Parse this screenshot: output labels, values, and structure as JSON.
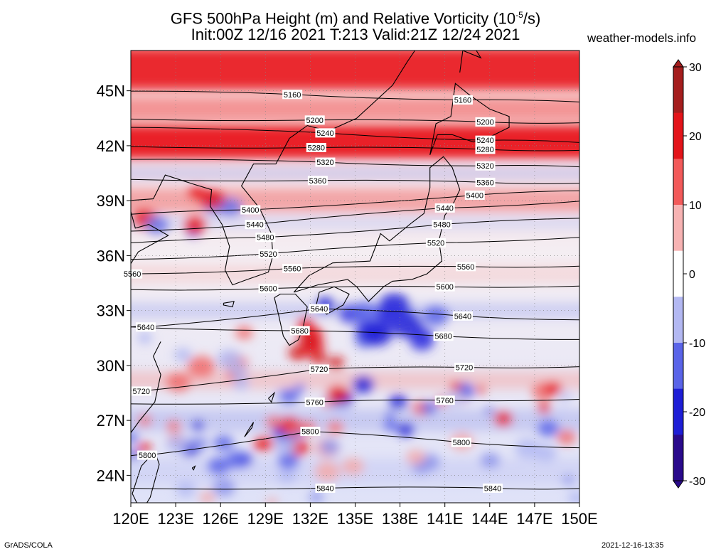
{
  "title_line1_pre": "GFS 500hPa Height (m) and Relative Vorticity (10",
  "title_line1_exp": "-5",
  "title_line1_post": "/s)",
  "title_line2": "Init:00Z 12/16 2021 T:213 Valid:21Z 12/24 2021",
  "site_label": "weather-models.info",
  "footer_left": "GrADS/COLA",
  "footer_right": "2021-12-16-13:35",
  "map": {
    "lon_range": [
      120,
      150
    ],
    "lat_range": [
      22.5,
      47.2
    ],
    "lat_ticks": [
      "45N",
      "42N",
      "39N",
      "36N",
      "33N",
      "30N",
      "27N",
      "24N"
    ],
    "lat_values": [
      45,
      42,
      39,
      36,
      33,
      30,
      27,
      24
    ],
    "lon_ticks": [
      "120E",
      "123E",
      "126E",
      "129E",
      "132E",
      "135E",
      "138E",
      "141E",
      "144E",
      "147E",
      "150E"
    ],
    "lon_values": [
      120,
      123,
      126,
      129,
      132,
      135,
      138,
      141,
      144,
      147,
      150
    ]
  },
  "colorbar": {
    "labels": [
      "30",
      "20",
      "10",
      "0",
      "-10",
      "-20",
      "-30"
    ],
    "values": [
      30,
      20,
      10,
      0,
      -10,
      -20,
      -30
    ],
    "colors": [
      "#a51e1e",
      "#e3141a",
      "#f25a5a",
      "#f7b3b3",
      "#ffffff",
      "#b3b8f2",
      "#5a64e8",
      "#1e1ed6",
      "#2a0a8c"
    ]
  },
  "contours": [
    {
      "label": "5160",
      "labels": [
        {
          "text": "5160",
          "lon": 130.8,
          "lat": 44.8
        },
        {
          "text": "5160",
          "lon": 142.2,
          "lat": 44.5
        }
      ]
    },
    {
      "label": "5200",
      "labels": [
        {
          "text": "5200",
          "lon": 132.3,
          "lat": 43.4
        },
        {
          "text": "5200",
          "lon": 143.7,
          "lat": 43.3
        }
      ]
    },
    {
      "label": "5240",
      "labels": [
        {
          "text": "5240",
          "lon": 133.0,
          "lat": 42.7
        },
        {
          "text": "5240",
          "lon": 143.7,
          "lat": 42.3
        }
      ]
    },
    {
      "label": "5280",
      "labels": [
        {
          "text": "5280",
          "lon": 132.4,
          "lat": 41.9
        },
        {
          "text": "5280",
          "lon": 143.7,
          "lat": 41.8
        }
      ]
    },
    {
      "label": "5320",
      "labels": [
        {
          "text": "5320",
          "lon": 133.0,
          "lat": 41.1
        },
        {
          "text": "5320",
          "lon": 143.7,
          "lat": 40.9
        }
      ]
    },
    {
      "label": "5360",
      "labels": [
        {
          "text": "5360",
          "lon": 132.5,
          "lat": 40.1
        },
        {
          "text": "5360",
          "lon": 143.7,
          "lat": 40.0
        }
      ]
    },
    {
      "label": "5400",
      "labels": [
        {
          "text": "5400",
          "lon": 128.0,
          "lat": 38.5
        },
        {
          "text": "5400",
          "lon": 143.0,
          "lat": 39.3
        }
      ]
    },
    {
      "label": "5440",
      "labels": [
        {
          "text": "5440",
          "lon": 128.3,
          "lat": 37.7
        },
        {
          "text": "5440",
          "lon": 141.0,
          "lat": 38.6
        }
      ]
    },
    {
      "label": "5480",
      "labels": [
        {
          "text": "5480",
          "lon": 129.0,
          "lat": 37.0
        },
        {
          "text": "5480",
          "lon": 140.8,
          "lat": 37.7
        }
      ]
    },
    {
      "label": "5520",
      "labels": [
        {
          "text": "5520",
          "lon": 129.2,
          "lat": 36.1
        },
        {
          "text": "5520",
          "lon": 140.4,
          "lat": 36.7
        }
      ]
    },
    {
      "label": "5560",
      "labels": [
        {
          "text": "5560",
          "lon": 120.1,
          "lat": 35.0
        },
        {
          "text": "5560",
          "lon": 130.8,
          "lat": 35.3
        },
        {
          "text": "5560",
          "lon": 142.4,
          "lat": 35.4
        }
      ]
    },
    {
      "label": "5600",
      "labels": [
        {
          "text": "5600",
          "lon": 129.2,
          "lat": 34.2
        },
        {
          "text": "5600",
          "lon": 141.0,
          "lat": 34.3
        }
      ]
    },
    {
      "label": "5640",
      "labels": [
        {
          "text": "5640",
          "lon": 121.0,
          "lat": 32.1
        },
        {
          "text": "5640",
          "lon": 132.6,
          "lat": 33.1
        },
        {
          "text": "5640",
          "lon": 142.2,
          "lat": 32.7
        }
      ]
    },
    {
      "label": "5680",
      "labels": [
        {
          "text": "5680",
          "lon": 131.3,
          "lat": 31.9
        },
        {
          "text": "5680",
          "lon": 140.9,
          "lat": 31.6
        }
      ]
    },
    {
      "label": "5720",
      "labels": [
        {
          "text": "5720",
          "lon": 120.7,
          "lat": 28.6
        },
        {
          "text": "5720",
          "lon": 132.6,
          "lat": 29.8
        },
        {
          "text": "5720",
          "lon": 142.3,
          "lat": 29.9
        }
      ]
    },
    {
      "label": "5760",
      "labels": [
        {
          "text": "5760",
          "lon": 132.3,
          "lat": 28.0
        },
        {
          "text": "5760",
          "lon": 141.0,
          "lat": 28.1
        }
      ]
    },
    {
      "label": "5800",
      "labels": [
        {
          "text": "5800",
          "lon": 121.1,
          "lat": 25.1
        },
        {
          "text": "5800",
          "lon": 132.0,
          "lat": 26.4
        },
        {
          "text": "5800",
          "lon": 142.1,
          "lat": 25.8
        }
      ]
    },
    {
      "label": "5840",
      "labels": [
        {
          "text": "5840",
          "lon": 133.0,
          "lat": 23.3
        },
        {
          "text": "5840",
          "lon": 144.2,
          "lat": 23.3
        }
      ]
    }
  ]
}
